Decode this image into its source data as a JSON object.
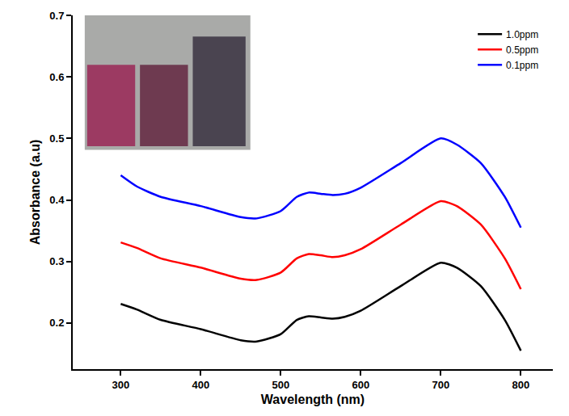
{
  "chart_data": {
    "type": "line",
    "x_label": "Wavelength (nm)",
    "y_label": "Absorbance (a.u)",
    "x": [
      300,
      320,
      350,
      400,
      450,
      470,
      500,
      520,
      535,
      550,
      565,
      580,
      600,
      650,
      700,
      720,
      750,
      780,
      800
    ],
    "series": [
      {
        "name": "1.0ppm",
        "color": "#000000",
        "values": [
          0.231,
          0.222,
          0.205,
          0.19,
          0.172,
          0.17,
          0.182,
          0.205,
          0.211,
          0.209,
          0.207,
          0.21,
          0.22,
          0.26,
          0.298,
          0.29,
          0.26,
          0.205,
          0.155
        ]
      },
      {
        "name": "0.5ppm",
        "color": "#ff0000",
        "values": [
          0.331,
          0.322,
          0.305,
          0.29,
          0.272,
          0.27,
          0.282,
          0.305,
          0.312,
          0.31,
          0.307,
          0.31,
          0.32,
          0.36,
          0.398,
          0.39,
          0.36,
          0.305,
          0.255
        ]
      },
      {
        "name": "0.1ppm",
        "color": "#0000ff",
        "values": [
          0.44,
          0.422,
          0.405,
          0.39,
          0.372,
          0.37,
          0.382,
          0.405,
          0.412,
          0.41,
          0.408,
          0.41,
          0.42,
          0.46,
          0.5,
          0.49,
          0.46,
          0.405,
          0.355
        ]
      }
    ],
    "xlim": [
      240,
      840
    ],
    "xticks": [
      300,
      400,
      500,
      600,
      700,
      800
    ],
    "ylim": [
      0.125,
      0.7
    ],
    "yticks": [
      0.2,
      0.3,
      0.4,
      0.5,
      0.6,
      0.7
    ],
    "grid": false,
    "legend": "top right"
  }
}
